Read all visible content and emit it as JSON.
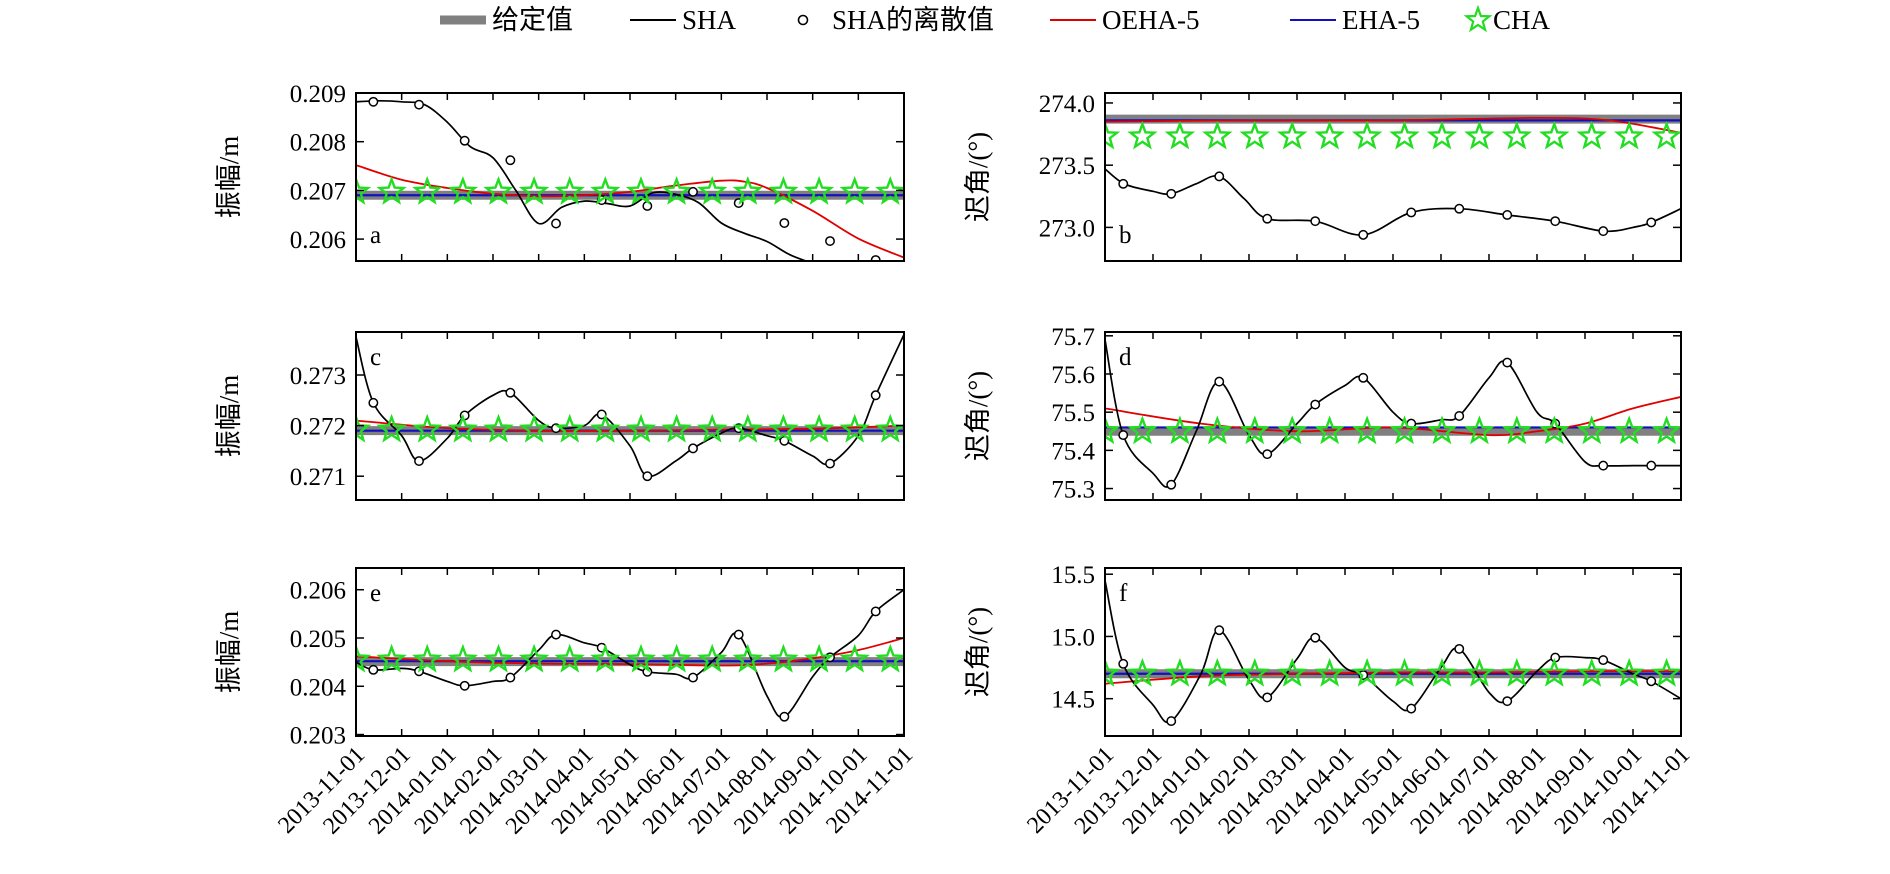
{
  "legend": [
    {
      "key": "given",
      "label": "给定值",
      "marker": "thick-bar",
      "color": "#808080"
    },
    {
      "key": "sha",
      "label": "SHA",
      "marker": "line",
      "color": "#000000"
    },
    {
      "key": "sha_discrete",
      "label": "SHA的离散值",
      "marker": "circle",
      "color": "#000000"
    },
    {
      "key": "oeha5",
      "label": "OEHA-5",
      "marker": "line",
      "color": "#e00000"
    },
    {
      "key": "eha5",
      "label": "EHA-5",
      "marker": "line",
      "color": "#1010c0"
    },
    {
      "key": "cha",
      "label": "CHA",
      "marker": "star",
      "color": "#22dd22"
    }
  ],
  "x_dates": [
    "2013-11-01",
    "2013-12-01",
    "2014-01-01",
    "2014-02-01",
    "2014-03-01",
    "2014-04-01",
    "2014-05-01",
    "2014-06-01",
    "2014-07-01",
    "2014-08-01",
    "2014-09-01",
    "2014-10-01",
    "2014-11-01"
  ],
  "chart_data": [
    {
      "type": "line",
      "panel": "a",
      "ylabel": "振幅/m",
      "ylim": [
        0.20555,
        0.209
      ],
      "yticks": [
        0.206,
        0.207,
        0.208,
        0.209
      ],
      "ytick_labels": [
        "0.206",
        "0.207",
        "0.208",
        "0.209"
      ],
      "given": 0.2069,
      "sha": [
        [
          0,
          0.20882
        ],
        [
          0.5,
          0.20884
        ],
        [
          1,
          0.20882
        ],
        [
          1.5,
          0.20876
        ],
        [
          2,
          0.2084
        ],
        [
          2.5,
          0.2079
        ],
        [
          3,
          0.20767
        ],
        [
          3.5,
          0.207
        ],
        [
          4,
          0.20632
        ],
        [
          4.5,
          0.20665
        ],
        [
          5,
          0.20678
        ],
        [
          5.5,
          0.20673
        ],
        [
          6,
          0.20668
        ],
        [
          6.5,
          0.20695
        ],
        [
          7,
          0.20692
        ],
        [
          7.5,
          0.20675
        ],
        [
          8,
          0.20633
        ],
        [
          8.5,
          0.20612
        ],
        [
          9,
          0.20595
        ],
        [
          9.5,
          0.20568
        ],
        [
          10,
          0.2055
        ]
      ],
      "sha_discrete": [
        [
          0.38,
          0.20882
        ],
        [
          1.38,
          0.20876
        ],
        [
          2.38,
          0.20802
        ],
        [
          3.38,
          0.20762
        ],
        [
          4.38,
          0.20632
        ],
        [
          5.38,
          0.2068
        ],
        [
          6.38,
          0.20668
        ],
        [
          7.38,
          0.20697
        ],
        [
          8.38,
          0.20674
        ],
        [
          9.38,
          0.20633
        ],
        [
          10.38,
          0.20596
        ],
        [
          11.38,
          0.20557
        ]
      ],
      "oeha5": [
        [
          0,
          0.20752
        ],
        [
          1,
          0.20722
        ],
        [
          2,
          0.20705
        ],
        [
          3,
          0.20693
        ],
        [
          4,
          0.20688
        ],
        [
          5,
          0.2069
        ],
        [
          6,
          0.20697
        ],
        [
          7,
          0.2071
        ],
        [
          8,
          0.2072
        ],
        [
          8.5,
          0.20718
        ],
        [
          9,
          0.20705
        ],
        [
          10,
          0.20658
        ],
        [
          11,
          0.20601
        ],
        [
          12,
          0.20562
        ]
      ],
      "eha5": 0.2069,
      "cha": 0.20697
    },
    {
      "type": "line",
      "panel": "b",
      "ylabel": "迟角/(°)",
      "ylim": [
        272.73,
        274.08
      ],
      "yticks": [
        273.0,
        273.5,
        274.0
      ],
      "ytick_labels": [
        "273.0",
        "273.5",
        "274.0"
      ],
      "given": 273.87,
      "sha": [
        [
          0,
          273.47
        ],
        [
          0.4,
          273.35
        ],
        [
          1,
          273.29
        ],
        [
          1.38,
          273.27
        ],
        [
          1.9,
          273.35
        ],
        [
          2.38,
          273.41
        ],
        [
          2.9,
          273.23
        ],
        [
          3.38,
          273.07
        ],
        [
          4.38,
          273.05
        ],
        [
          5.38,
          272.94
        ],
        [
          6.38,
          273.12
        ],
        [
          7.38,
          273.15
        ],
        [
          8.38,
          273.1
        ],
        [
          9.38,
          273.05
        ],
        [
          10.38,
          272.97
        ],
        [
          11,
          273.0
        ],
        [
          11.38,
          273.04
        ],
        [
          12,
          273.15
        ]
      ],
      "sha_discrete": [
        [
          0.38,
          273.35
        ],
        [
          1.38,
          273.27
        ],
        [
          2.38,
          273.41
        ],
        [
          3.38,
          273.07
        ],
        [
          4.38,
          273.05
        ],
        [
          5.38,
          272.94
        ],
        [
          6.38,
          273.12
        ],
        [
          7.38,
          273.15
        ],
        [
          8.38,
          273.1
        ],
        [
          9.38,
          273.05
        ],
        [
          10.38,
          272.97
        ],
        [
          11.38,
          273.04
        ]
      ],
      "oeha5": [
        [
          0,
          273.85
        ],
        [
          3,
          273.86
        ],
        [
          6,
          273.86
        ],
        [
          9,
          273.88
        ],
        [
          10.5,
          273.86
        ],
        [
          12,
          273.76
        ]
      ],
      "eha5": 273.86,
      "cha": 273.73
    },
    {
      "type": "line",
      "panel": "c",
      "ylabel": "振幅/m",
      "ylim": [
        0.27053,
        0.27385
      ],
      "yticks": [
        0.271,
        0.272,
        0.273
      ],
      "ytick_labels": [
        "0.271",
        "0.272",
        "0.273"
      ],
      "given": 0.2719,
      "sha": [
        [
          0,
          0.27375
        ],
        [
          0.38,
          0.27245
        ],
        [
          1,
          0.2718
        ],
        [
          1.38,
          0.2713
        ],
        [
          2,
          0.27175
        ],
        [
          2.38,
          0.2722
        ],
        [
          3,
          0.2726
        ],
        [
          3.38,
          0.27265
        ],
        [
          4,
          0.2721
        ],
        [
          4.38,
          0.27195
        ],
        [
          5,
          0.272
        ],
        [
          5.38,
          0.27222
        ],
        [
          6,
          0.2716
        ],
        [
          6.38,
          0.271
        ],
        [
          7,
          0.2713
        ],
        [
          7.38,
          0.27155
        ],
        [
          8,
          0.27185
        ],
        [
          8.38,
          0.27195
        ],
        [
          9,
          0.2718
        ],
        [
          9.38,
          0.2717
        ],
        [
          10,
          0.2714
        ],
        [
          10.38,
          0.27125
        ],
        [
          11,
          0.2718
        ],
        [
          11.38,
          0.2726
        ],
        [
          12,
          0.2738
        ]
      ],
      "sha_discrete": [
        [
          0.38,
          0.27245
        ],
        [
          1.38,
          0.2713
        ],
        [
          2.38,
          0.2722
        ],
        [
          3.38,
          0.27265
        ],
        [
          4.38,
          0.27195
        ],
        [
          5.38,
          0.27222
        ],
        [
          6.38,
          0.271
        ],
        [
          7.38,
          0.27155
        ],
        [
          8.38,
          0.27195
        ],
        [
          9.38,
          0.2717
        ],
        [
          10.38,
          0.27125
        ],
        [
          11.38,
          0.2726
        ]
      ],
      "oeha5": [
        [
          0,
          0.2721
        ],
        [
          2,
          0.27195
        ],
        [
          4,
          0.2719
        ],
        [
          6,
          0.2719
        ],
        [
          8,
          0.27192
        ],
        [
          10,
          0.27194
        ],
        [
          12,
          0.272
        ]
      ],
      "eha5": 0.2719,
      "cha": 0.27192
    },
    {
      "type": "line",
      "panel": "d",
      "ylabel": "迟角/(°)",
      "ylim": [
        75.27,
        75.71
      ],
      "yticks": [
        75.3,
        75.4,
        75.5,
        75.6,
        75.7
      ],
      "ytick_labels": [
        "75.3",
        "75.4",
        "75.5",
        "75.6",
        "75.7"
      ],
      "given": 75.45,
      "sha": [
        [
          0,
          75.69
        ],
        [
          0.38,
          75.44
        ],
        [
          1,
          75.34
        ],
        [
          1.38,
          75.31
        ],
        [
          1.9,
          75.45
        ],
        [
          2.38,
          75.58
        ],
        [
          3,
          75.44
        ],
        [
          3.38,
          75.39
        ],
        [
          4,
          75.47
        ],
        [
          4.38,
          75.52
        ],
        [
          5,
          75.57
        ],
        [
          5.38,
          75.59
        ],
        [
          6,
          75.5
        ],
        [
          6.38,
          75.47
        ],
        [
          7,
          75.48
        ],
        [
          7.38,
          75.49
        ],
        [
          8,
          75.59
        ],
        [
          8.38,
          75.63
        ],
        [
          9,
          75.5
        ],
        [
          9.38,
          75.47
        ],
        [
          10,
          75.37
        ],
        [
          10.38,
          75.36
        ],
        [
          11,
          75.36
        ],
        [
          11.38,
          75.36
        ],
        [
          12,
          75.36
        ]
      ],
      "sha_discrete": [
        [
          0.38,
          75.44
        ],
        [
          1.38,
          75.31
        ],
        [
          2.38,
          75.58
        ],
        [
          3.38,
          75.39
        ],
        [
          4.38,
          75.52
        ],
        [
          5.38,
          75.59
        ],
        [
          6.38,
          75.47
        ],
        [
          7.38,
          75.49
        ],
        [
          8.38,
          75.63
        ],
        [
          9.38,
          75.47
        ],
        [
          10.38,
          75.36
        ],
        [
          11.38,
          75.36
        ]
      ],
      "oeha5": [
        [
          0,
          75.51
        ],
        [
          2,
          75.47
        ],
        [
          4,
          75.45
        ],
        [
          6,
          75.46
        ],
        [
          8,
          75.44
        ],
        [
          9,
          75.45
        ],
        [
          10,
          75.47
        ],
        [
          11,
          75.51
        ],
        [
          12,
          75.54
        ]
      ],
      "eha5": 75.46,
      "cha": 75.45
    },
    {
      "type": "line",
      "panel": "e",
      "ylabel": "振幅/m",
      "ylim": [
        0.20297,
        0.20645
      ],
      "yticks": [
        0.203,
        0.204,
        0.205,
        0.206
      ],
      "ytick_labels": [
        "0.203",
        "0.204",
        "0.205",
        "0.206"
      ],
      "given": 0.20451,
      "sha": [
        [
          0,
          0.2045
        ],
        [
          0.38,
          0.20434
        ],
        [
          1,
          0.20437
        ],
        [
          1.38,
          0.20431
        ],
        [
          2,
          0.2041
        ],
        [
          2.38,
          0.20401
        ],
        [
          3,
          0.2041
        ],
        [
          3.38,
          0.20418
        ],
        [
          4,
          0.20475
        ],
        [
          4.38,
          0.20507
        ],
        [
          5,
          0.2049
        ],
        [
          5.38,
          0.2048
        ],
        [
          6,
          0.20445
        ],
        [
          6.38,
          0.2043
        ],
        [
          7,
          0.20425
        ],
        [
          7.38,
          0.20418
        ],
        [
          8,
          0.2047
        ],
        [
          8.38,
          0.20507
        ],
        [
          9,
          0.2038
        ],
        [
          9.38,
          0.20337
        ],
        [
          10,
          0.2042
        ],
        [
          10.38,
          0.2046
        ],
        [
          11,
          0.20505
        ],
        [
          11.38,
          0.20555
        ],
        [
          12,
          0.206
        ]
      ],
      "sha_discrete": [
        [
          0.38,
          0.20434
        ],
        [
          1.38,
          0.20431
        ],
        [
          2.38,
          0.20401
        ],
        [
          3.38,
          0.20418
        ],
        [
          4.38,
          0.20507
        ],
        [
          5.38,
          0.2048
        ],
        [
          6.38,
          0.2043
        ],
        [
          7.38,
          0.20418
        ],
        [
          8.38,
          0.20507
        ],
        [
          9.38,
          0.20337
        ],
        [
          10.38,
          0.2046
        ],
        [
          11.38,
          0.20555
        ]
      ],
      "oeha5": [
        [
          0,
          0.20462
        ],
        [
          2,
          0.20452
        ],
        [
          4,
          0.20447
        ],
        [
          6,
          0.20446
        ],
        [
          8,
          0.20443
        ],
        [
          9,
          0.20447
        ],
        [
          10,
          0.20458
        ],
        [
          11,
          0.20475
        ],
        [
          12,
          0.205
        ]
      ],
      "eha5": 0.20452,
      "cha": 0.20455
    },
    {
      "type": "line",
      "panel": "f",
      "ylabel": "迟角/(°)",
      "ylim": [
        14.2,
        15.55
      ],
      "yticks": [
        14.5,
        15.0,
        15.5
      ],
      "ytick_labels": [
        "14.5",
        "15.0",
        "15.5"
      ],
      "given": 14.7,
      "sha": [
        [
          0,
          15.45
        ],
        [
          0.38,
          14.78
        ],
        [
          1,
          14.45
        ],
        [
          1.38,
          14.32
        ],
        [
          2,
          14.7
        ],
        [
          2.38,
          15.05
        ],
        [
          3,
          14.65
        ],
        [
          3.38,
          14.51
        ],
        [
          4,
          14.82
        ],
        [
          4.38,
          14.99
        ],
        [
          5,
          14.75
        ],
        [
          5.38,
          14.69
        ],
        [
          6,
          14.48
        ],
        [
          6.38,
          14.42
        ],
        [
          7,
          14.75
        ],
        [
          7.38,
          14.9
        ],
        [
          8,
          14.55
        ],
        [
          8.38,
          14.48
        ],
        [
          9,
          14.72
        ],
        [
          9.38,
          14.83
        ],
        [
          10,
          14.83
        ],
        [
          10.38,
          14.81
        ],
        [
          11,
          14.7
        ],
        [
          11.38,
          14.64
        ],
        [
          12,
          14.5
        ]
      ],
      "sha_discrete": [
        [
          0.38,
          14.78
        ],
        [
          1.38,
          14.32
        ],
        [
          2.38,
          15.05
        ],
        [
          3.38,
          14.51
        ],
        [
          4.38,
          14.99
        ],
        [
          5.38,
          14.69
        ],
        [
          6.38,
          14.42
        ],
        [
          7.38,
          14.9
        ],
        [
          8.38,
          14.48
        ],
        [
          9.38,
          14.83
        ],
        [
          10.38,
          14.81
        ],
        [
          11.38,
          14.64
        ]
      ],
      "oeha5": [
        [
          0,
          14.62
        ],
        [
          2,
          14.68
        ],
        [
          4,
          14.7
        ],
        [
          6,
          14.71
        ],
        [
          8,
          14.71
        ],
        [
          10,
          14.72
        ],
        [
          12,
          14.72
        ]
      ],
      "eha5": 14.7,
      "cha": 14.7
    }
  ]
}
